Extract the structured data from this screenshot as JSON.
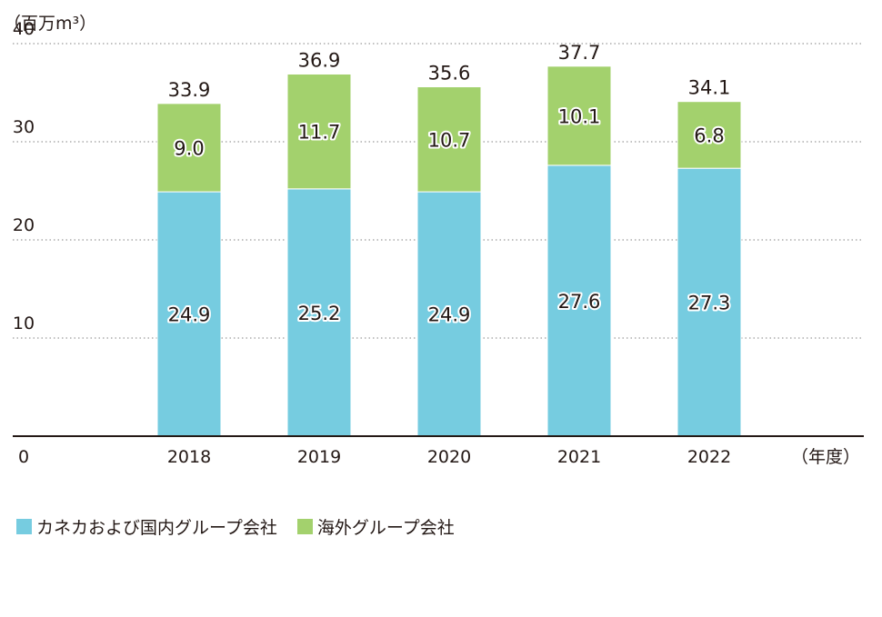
{
  "chart_data": {
    "type": "bar",
    "stacked": true,
    "unit_label": "（百万m³）",
    "x_unit_label": "（年度）",
    "categories": [
      "2018",
      "2019",
      "2020",
      "2021",
      "2022"
    ],
    "series": [
      {
        "name": "カネカおよび国内グループ会社",
        "color": "#76cce0",
        "values": [
          24.9,
          25.2,
          24.9,
          27.6,
          27.3
        ]
      },
      {
        "name": "海外グループ会社",
        "color": "#a3d16d",
        "values": [
          9.0,
          11.7,
          10.7,
          10.1,
          6.8
        ]
      }
    ],
    "totals": [
      "33.9",
      "36.9",
      "35.6",
      "37.7",
      "34.1"
    ],
    "segment_labels": [
      [
        "24.9",
        "25.2",
        "24.9",
        "27.6",
        "27.3"
      ],
      [
        "9.0",
        "11.7",
        "10.7",
        "10.1",
        "6.8"
      ]
    ],
    "yticks": [
      "0",
      "10",
      "20",
      "30",
      "40"
    ],
    "ylim": [
      0,
      40
    ],
    "grid": "dotted horizontal",
    "legend_position": "bottom-left"
  }
}
